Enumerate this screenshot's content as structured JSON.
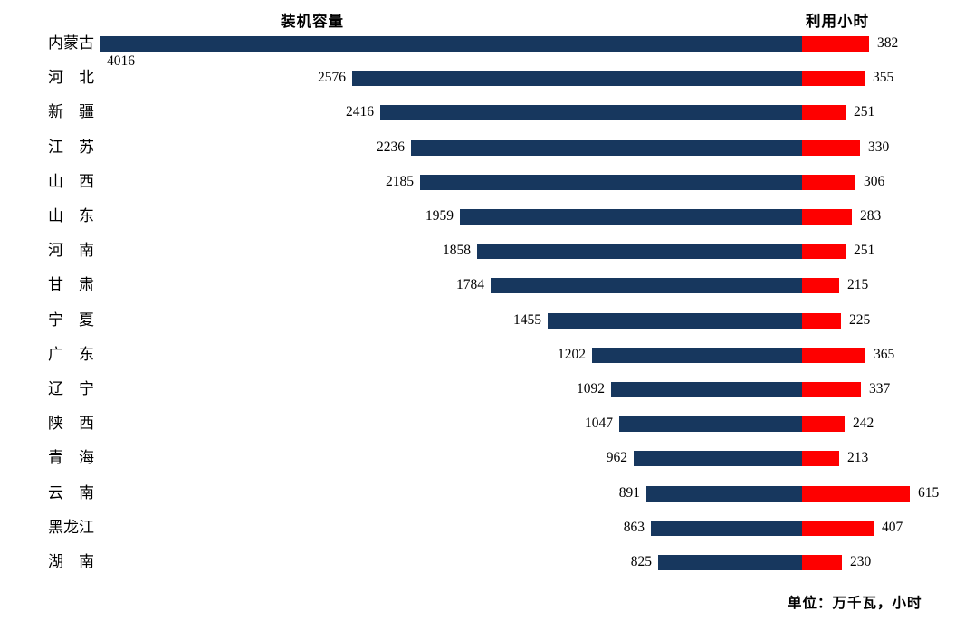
{
  "chart_data": {
    "type": "bar",
    "subtype": "diverging-horizontal",
    "left_title": "装机容量",
    "right_title": "利用小时",
    "footnote": "单位：万千瓦，小时",
    "legend_position": "column-headers",
    "grid": false,
    "categories": [
      "内蒙古",
      "河北",
      "新疆",
      "江苏",
      "山西",
      "山东",
      "河南",
      "甘肃",
      "宁夏",
      "广东",
      "辽宁",
      "陕西",
      "青海",
      "云南",
      "黑龙江",
      "湖南"
    ],
    "categories_display": [
      "内蒙古",
      "河　北",
      "新　疆",
      "江　苏",
      "山　西",
      "山　东",
      "河　南",
      "甘　肃",
      "宁　夏",
      "广　东",
      "辽　宁",
      "陕　西",
      "青　海",
      "云　南",
      "黑龙江",
      "湖　南"
    ],
    "series": [
      {
        "name": "装机容量",
        "color": "#17375E",
        "direction": "left",
        "values": [
          4016,
          2576,
          2416,
          2236,
          2185,
          1959,
          1858,
          1784,
          1455,
          1202,
          1092,
          1047,
          962,
          891,
          863,
          825
        ]
      },
      {
        "name": "利用小时",
        "color": "#FE0000",
        "direction": "right",
        "values": [
          382,
          355,
          251,
          330,
          306,
          283,
          251,
          215,
          225,
          365,
          337,
          242,
          213,
          615,
          407,
          230
        ]
      }
    ],
    "value_range_capacity": [
      0,
      4016
    ],
    "value_range_hours": [
      0,
      615
    ],
    "units": "万千瓦 / 小时"
  }
}
